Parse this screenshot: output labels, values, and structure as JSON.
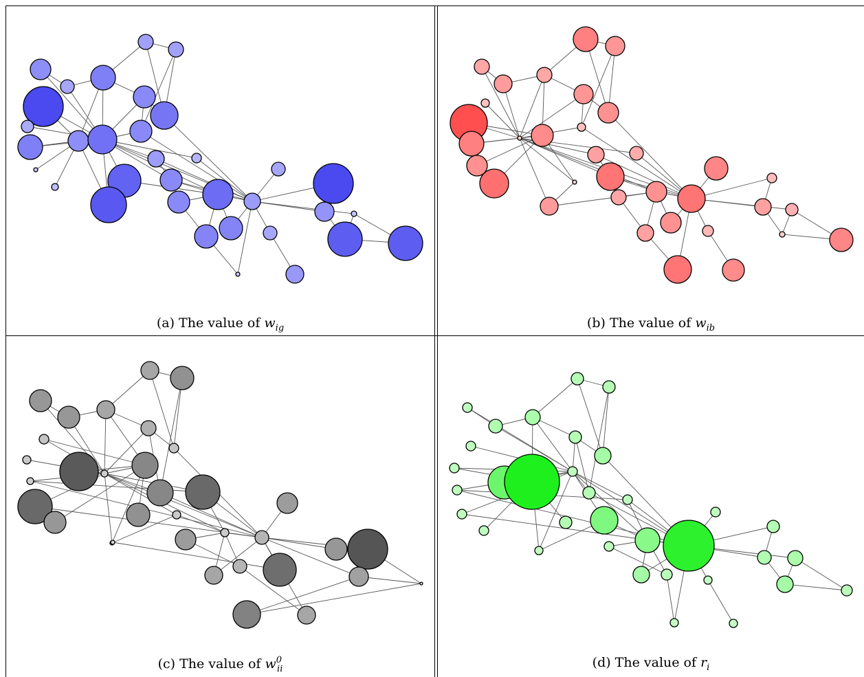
{
  "panels": [
    {
      "id": "a",
      "caption_prefix": "(a) The value of",
      "symbol": "w",
      "subscript": "ig",
      "superscript": "",
      "fill_light": "#c8c8ff",
      "fill_dark": "#4a4af0"
    },
    {
      "id": "b",
      "caption_prefix": "(b) The value of",
      "symbol": "w",
      "subscript": "ib",
      "superscript": "",
      "fill_light": "#ffd2d2",
      "fill_dark": "#ff4f4f"
    },
    {
      "id": "c",
      "caption_prefix": "(c) The value of",
      "symbol": "w",
      "subscript": "ii",
      "superscript": "0",
      "fill_light": "#d8d8d8",
      "fill_dark": "#555555"
    },
    {
      "id": "d",
      "caption_prefix": "(d) The value of",
      "symbol": "r",
      "subscript": "i",
      "superscript": "",
      "fill_light": "#d2ffd2",
      "fill_dark": "#1ef01e"
    }
  ]
}
